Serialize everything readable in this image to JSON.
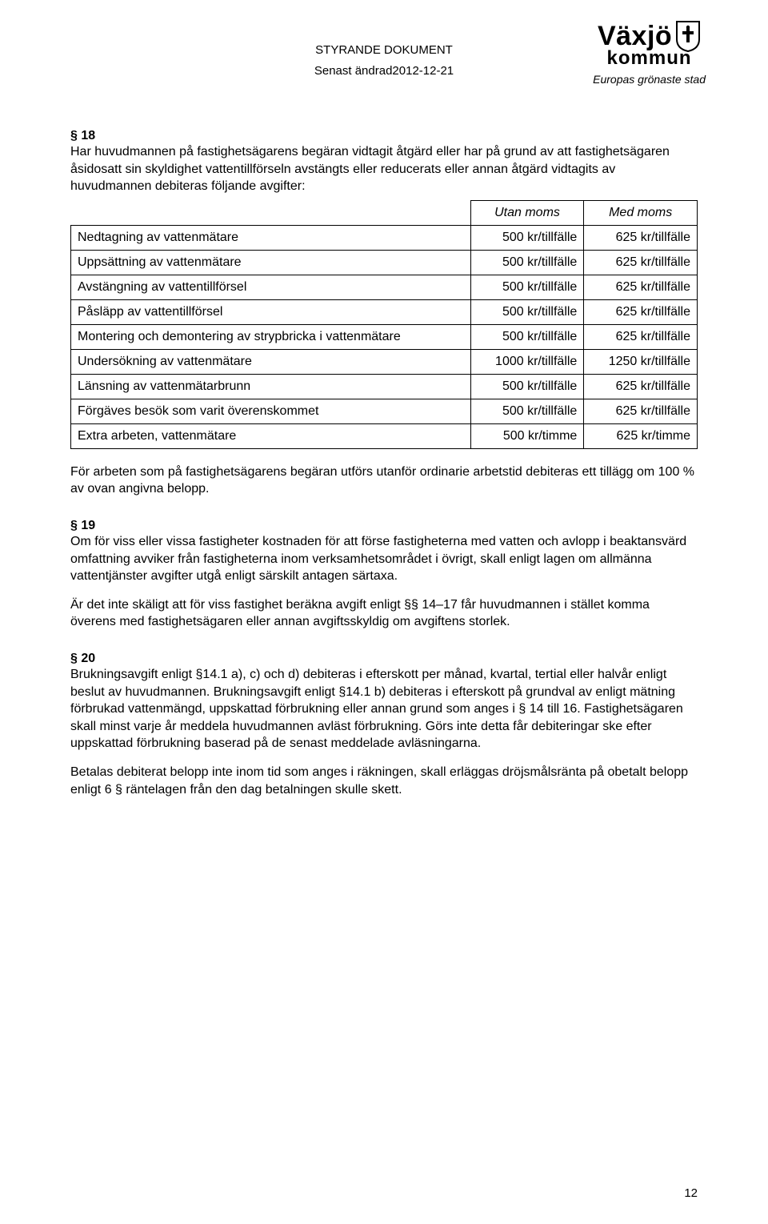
{
  "header": {
    "styrande": "STYRANDE DOKUMENT",
    "senast": "Senast ändrad2012-12-21",
    "logo_top_left": "Växjö",
    "logo_bottom": "kommun",
    "logo_tagline": "Europas grönaste stad"
  },
  "s18": {
    "title": "§ 18",
    "intro": "Har huvudmannen på fastighetsägarens begäran vidtagit åtgärd eller har på grund av att fastighetsägaren åsidosatt sin skyldighet vattentillförseln avstängts eller reducerats eller annan åtgärd vidtagits av huvudmannen debiteras följande avgifter:"
  },
  "table": {
    "col1": "Utan moms",
    "col2": "Med moms",
    "rows": [
      {
        "label": "Nedtagning av vattenmätare",
        "utan": "500 kr/tillfälle",
        "med": "625 kr/tillfälle"
      },
      {
        "label": "Uppsättning av vattenmätare",
        "utan": "500 kr/tillfälle",
        "med": "625 kr/tillfälle"
      },
      {
        "label": "Avstängning av vattentillförsel",
        "utan": "500 kr/tillfälle",
        "med": "625 kr/tillfälle"
      },
      {
        "label": "Påsläpp av vattentillförsel",
        "utan": "500 kr/tillfälle",
        "med": "625 kr/tillfälle"
      },
      {
        "label": "Montering och demontering av strypbricka i vattenmätare",
        "utan": "500 kr/tillfälle",
        "med": "625 kr/tillfälle"
      },
      {
        "label": "Undersökning av vattenmätare",
        "utan": "1000 kr/tillfälle",
        "med": "1250 kr/tillfälle"
      },
      {
        "label": "Länsning av vattenmätarbrunn",
        "utan": "500 kr/tillfälle",
        "med": "625 kr/tillfälle"
      },
      {
        "label": "Förgäves besök som varit överenskommet",
        "utan": "500 kr/tillfälle",
        "med": "625 kr/tillfälle"
      },
      {
        "label": "Extra arbeten, vattenmätare",
        "utan": "500 kr/timme",
        "med": "625 kr/timme"
      }
    ]
  },
  "s18_after": "För arbeten som på fastighetsägarens begäran utförs utanför ordinarie arbetstid debiteras ett tillägg om 100 % av ovan angivna belopp.",
  "s19": {
    "title": "§ 19",
    "p1": "Om för viss eller vissa fastigheter kostnaden för att förse fastigheterna med vatten och avlopp i beaktansvärd omfattning avviker från fastigheterna inom verksamhetsområdet i övrigt, skall enligt lagen om allmänna vattentjänster avgifter utgå enligt särskilt antagen särtaxa.",
    "p2": "Är det inte skäligt att för viss fastighet beräkna avgift enligt §§ 14–17 får huvudmannen i stället komma överens med fastighetsägaren eller annan avgiftsskyldig om avgiftens storlek."
  },
  "s20": {
    "title": "§ 20",
    "p1": "Brukningsavgift enligt §14.1 a), c) och d) debiteras i efterskott per månad, kvartal, tertial eller halvår enligt beslut av huvudmannen. Brukningsavgift enligt §14.1 b) debiteras i efterskott på grundval av enligt mätning förbrukad vattenmängd, uppskattad förbrukning eller annan grund som anges i § 14 till 16. Fastighetsägaren skall minst varje år meddela huvudmannen avläst förbrukning. Görs inte detta får debiteringar ske efter uppskattad förbrukning baserad på de senast meddelade avläsningarna.",
    "p2": "Betalas debiterat belopp inte inom tid som anges i räkningen, skall erläggas dröjsmålsränta på obetalt belopp enligt 6 § räntelagen från den dag betalningen skulle skett."
  },
  "page_number": "12"
}
